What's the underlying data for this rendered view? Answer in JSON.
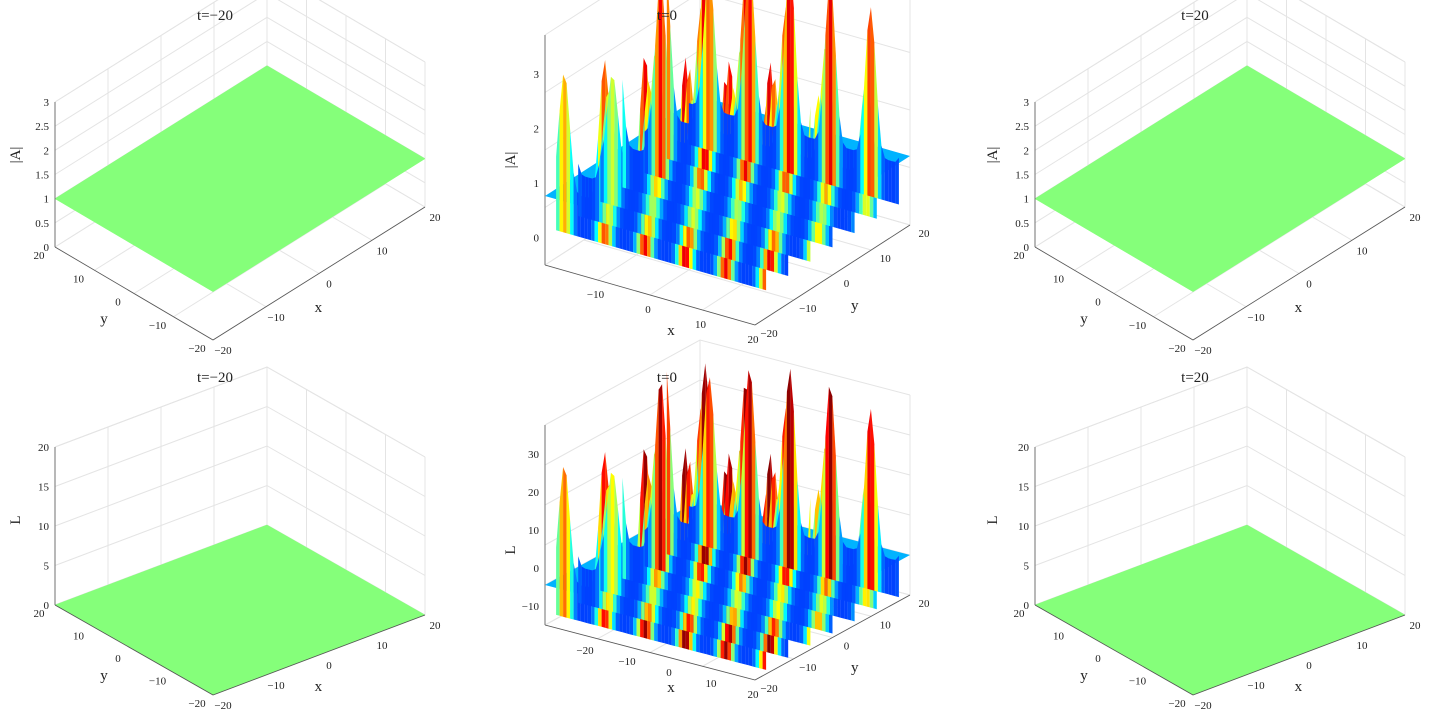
{
  "chart_data": [
    {
      "type": "surface",
      "title": "t=−20",
      "zlabel": "|A|",
      "xlabel": "x",
      "ylabel": "y",
      "xlim": [
        -20,
        20
      ],
      "ylim": [
        -20,
        20
      ],
      "zlim": [
        0,
        3
      ],
      "x_ticks": [
        "−20",
        "−10",
        "0",
        "10",
        "20"
      ],
      "y_ticks": [
        "−20",
        "−10",
        "0",
        "10",
        "20"
      ],
      "z_ticks": [
        "0",
        "0.5",
        "1",
        "1.5",
        "2",
        "2.5",
        "3"
      ],
      "surface": "flat",
      "z_value": 1,
      "color": "#85FF7A",
      "grid": true
    },
    {
      "type": "surface",
      "title": "t=0",
      "zlabel": "|A|",
      "xlabel": "x",
      "ylabel": "y",
      "xlim": [
        -20,
        20
      ],
      "ylim": [
        -20,
        20
      ],
      "zlim": [
        0,
        3
      ],
      "x_ticks": [
        "−10",
        "0",
        "10",
        "20"
      ],
      "y_ticks": [
        "−20",
        "−10",
        "0",
        "10",
        "20"
      ],
      "z_ticks": [
        "0",
        "1",
        "2",
        "3"
      ],
      "surface": "periodic-peaks",
      "z_base": 0.9,
      "z_max": 3.1,
      "colormap": "jet",
      "grid": true
    },
    {
      "type": "surface",
      "title": "t=20",
      "zlabel": "|A|",
      "xlabel": "x",
      "ylabel": "y",
      "xlim": [
        -20,
        20
      ],
      "ylim": [
        -20,
        20
      ],
      "zlim": [
        0,
        3
      ],
      "x_ticks": [
        "−20",
        "−10",
        "0",
        "10",
        "20"
      ],
      "y_ticks": [
        "−20",
        "−10",
        "0",
        "10",
        "20"
      ],
      "z_ticks": [
        "0",
        "0.5",
        "1",
        "1.5",
        "2",
        "2.5",
        "3"
      ],
      "surface": "flat",
      "z_value": 1,
      "color": "#85FF7A",
      "grid": true
    },
    {
      "type": "surface",
      "title": "t=−20",
      "zlabel": "L",
      "xlabel": "x",
      "ylabel": "y",
      "xlim": [
        -20,
        20
      ],
      "ylim": [
        -20,
        20
      ],
      "zlim": [
        0,
        22
      ],
      "x_ticks": [
        "−20",
        "−10",
        "0",
        "10",
        "20"
      ],
      "y_ticks": [
        "−20",
        "−10",
        "0",
        "10",
        "20"
      ],
      "z_ticks": [
        "0",
        "5",
        "10",
        "15",
        "20"
      ],
      "surface": "flat",
      "z_value": 0,
      "color": "#85FF7A",
      "grid": true
    },
    {
      "type": "surface",
      "title": "t=0",
      "zlabel": "L",
      "xlabel": "x",
      "ylabel": "y",
      "xlim": [
        -20,
        20
      ],
      "ylim": [
        -20,
        20
      ],
      "zlim": [
        -10,
        30
      ],
      "x_ticks": [
        "−20",
        "−10",
        "0",
        "10",
        "20"
      ],
      "y_ticks": [
        "−20",
        "−10",
        "0",
        "10",
        "20"
      ],
      "z_ticks": [
        "−10",
        "0",
        "10",
        "20",
        "30"
      ],
      "surface": "periodic-peaks",
      "z_base": -2,
      "z_max": 31,
      "colormap": "jet",
      "grid": true
    },
    {
      "type": "surface",
      "title": "t=20",
      "zlabel": "L",
      "xlabel": "x",
      "ylabel": "y",
      "xlim": [
        -20,
        20
      ],
      "ylim": [
        -20,
        20
      ],
      "zlim": [
        0,
        22
      ],
      "x_ticks": [
        "−20",
        "−10",
        "0",
        "10",
        "20"
      ],
      "y_ticks": [
        "−20",
        "−10",
        "0",
        "10",
        "20"
      ],
      "z_ticks": [
        "0",
        "5",
        "10",
        "15",
        "20"
      ],
      "surface": "flat",
      "z_value": 0,
      "color": "#85FF7A",
      "grid": true
    }
  ]
}
